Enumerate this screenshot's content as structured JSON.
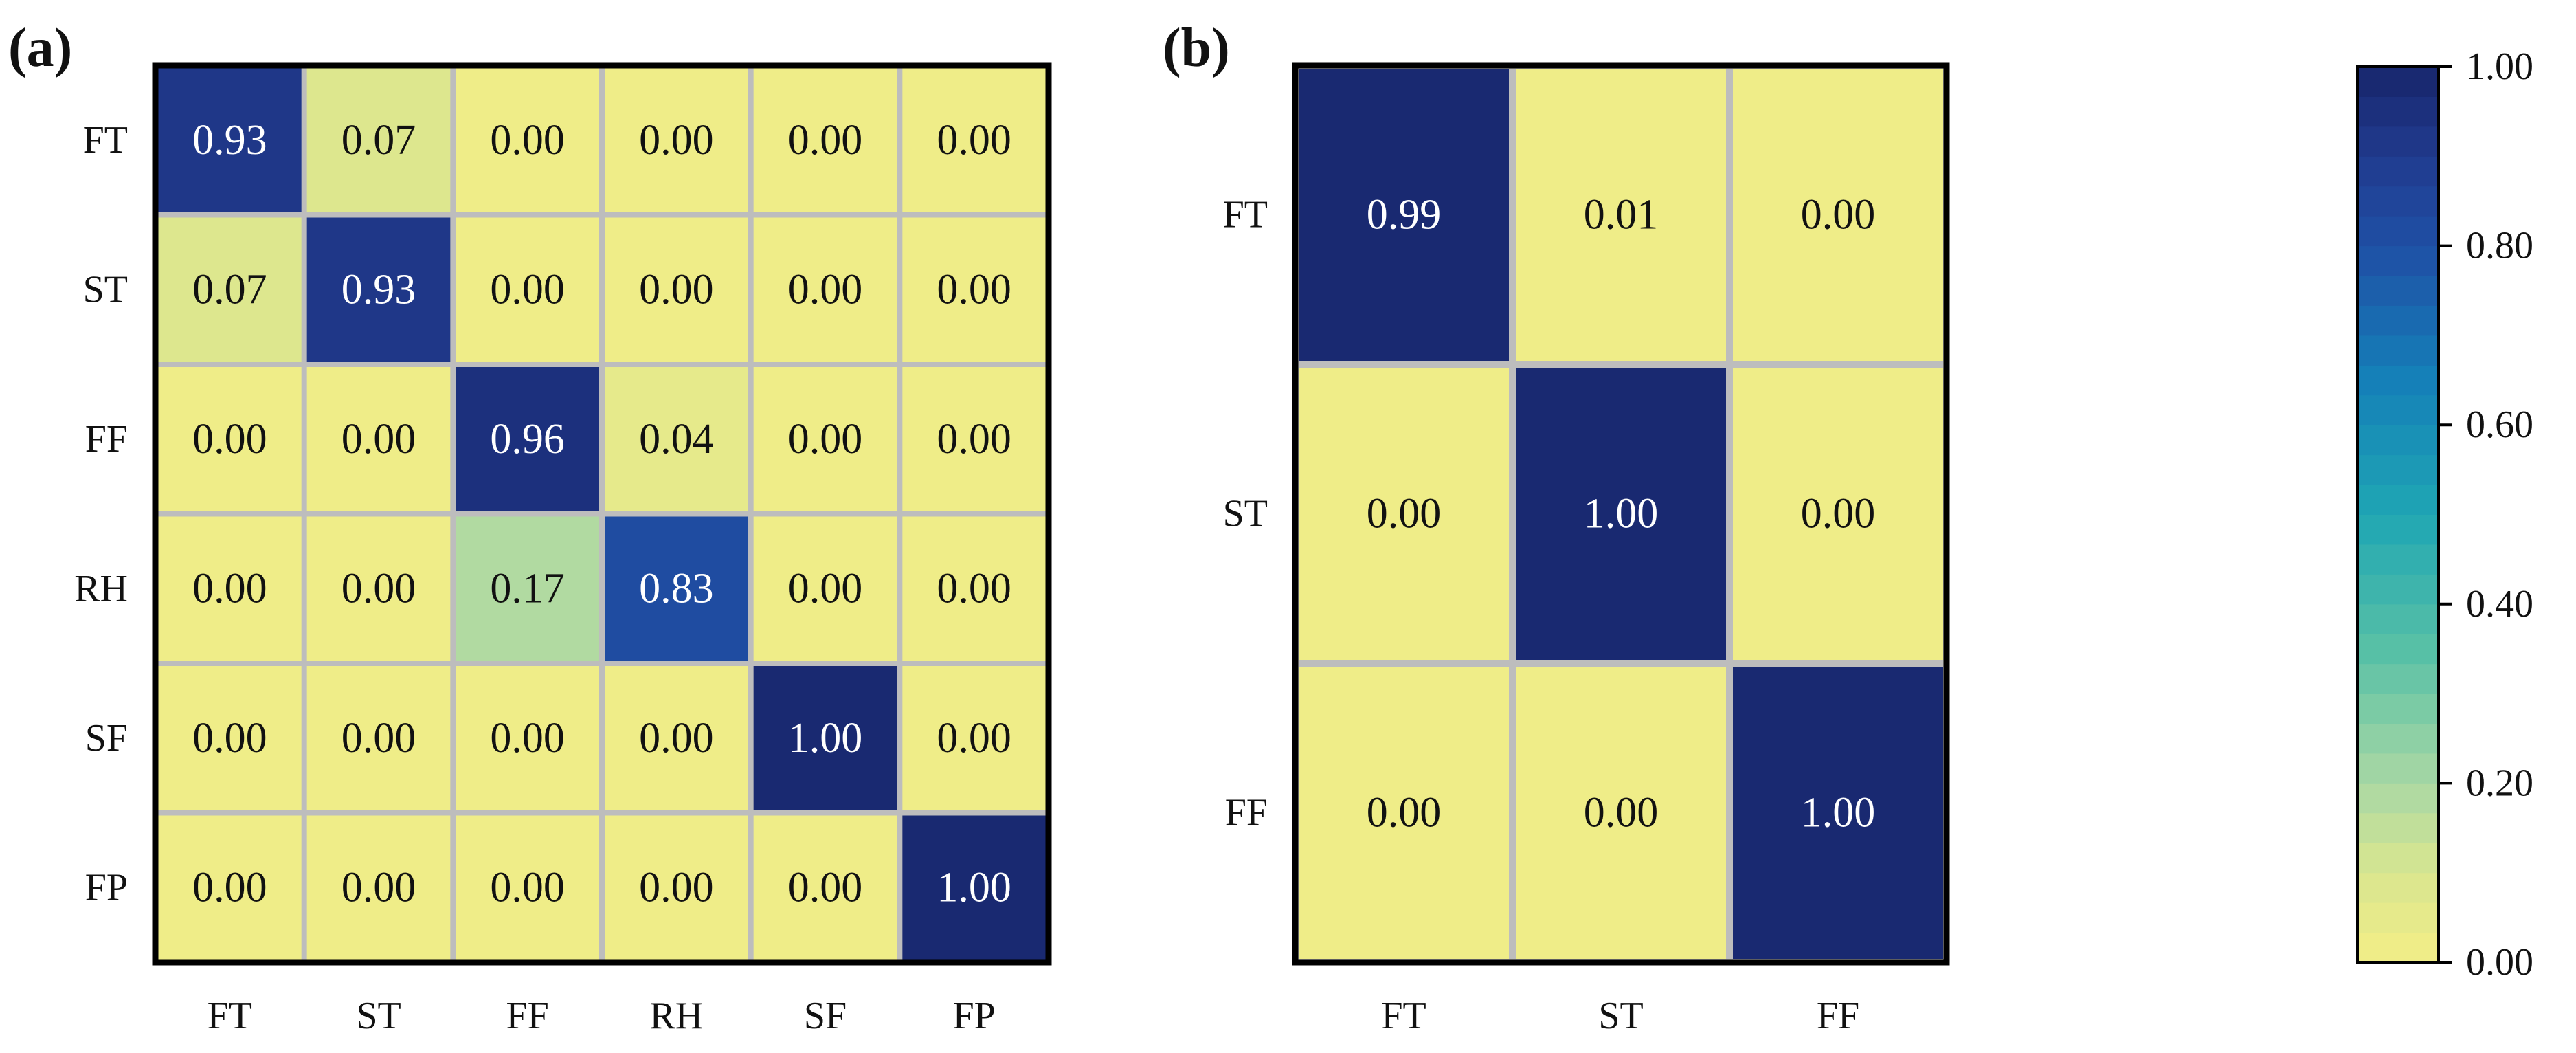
{
  "chart_data": [
    {
      "type": "heatmap",
      "panel_label": "(a)",
      "rows": [
        "FT",
        "ST",
        "FF",
        "RH",
        "SF",
        "FP"
      ],
      "columns": [
        "FT",
        "ST",
        "FF",
        "RH",
        "SF",
        "FP"
      ],
      "values": [
        [
          0.93,
          0.07,
          0.0,
          0.0,
          0.0,
          0.0
        ],
        [
          0.07,
          0.93,
          0.0,
          0.0,
          0.0,
          0.0
        ],
        [
          0.0,
          0.0,
          0.96,
          0.04,
          0.0,
          0.0
        ],
        [
          0.0,
          0.0,
          0.17,
          0.83,
          0.0,
          0.0
        ],
        [
          0.0,
          0.0,
          0.0,
          0.0,
          1.0,
          0.0
        ],
        [
          0.0,
          0.0,
          0.0,
          0.0,
          0.0,
          1.0
        ]
      ],
      "value_format": "0.00",
      "grid": true
    },
    {
      "type": "heatmap",
      "panel_label": "(b)",
      "rows": [
        "FT",
        "ST",
        "FF"
      ],
      "columns": [
        "FT",
        "ST",
        "FF"
      ],
      "values": [
        [
          0.99,
          0.01,
          0.0
        ],
        [
          0.0,
          1.0,
          0.0
        ],
        [
          0.0,
          0.0,
          1.0
        ]
      ],
      "value_format": "0.00",
      "grid": true
    }
  ],
  "colorbar": {
    "range": [
      0,
      1
    ],
    "ticks": [
      "1.00",
      "0.80",
      "0.60",
      "0.40",
      "0.20",
      "0.00"
    ],
    "tick_values": [
      1.0,
      0.8,
      0.6,
      0.4,
      0.2,
      0.0
    ],
    "levels": 30,
    "stops": [
      {
        "v": 0.0,
        "c": "#f3ee86"
      },
      {
        "v": 0.1,
        "c": "#d9e690"
      },
      {
        "v": 0.2,
        "c": "#a9d8a4"
      },
      {
        "v": 0.35,
        "c": "#57c0a6"
      },
      {
        "v": 0.5,
        "c": "#1fa6b3"
      },
      {
        "v": 0.65,
        "c": "#1580b8"
      },
      {
        "v": 0.8,
        "c": "#1f4fa5"
      },
      {
        "v": 0.9,
        "c": "#203a8e"
      },
      {
        "v": 1.0,
        "c": "#18266b"
      }
    ]
  },
  "colors": {
    "grid_line": "#bdbdbd",
    "frame": "#000000",
    "text_dark": "#111111",
    "text_light": "#ffffff"
  }
}
